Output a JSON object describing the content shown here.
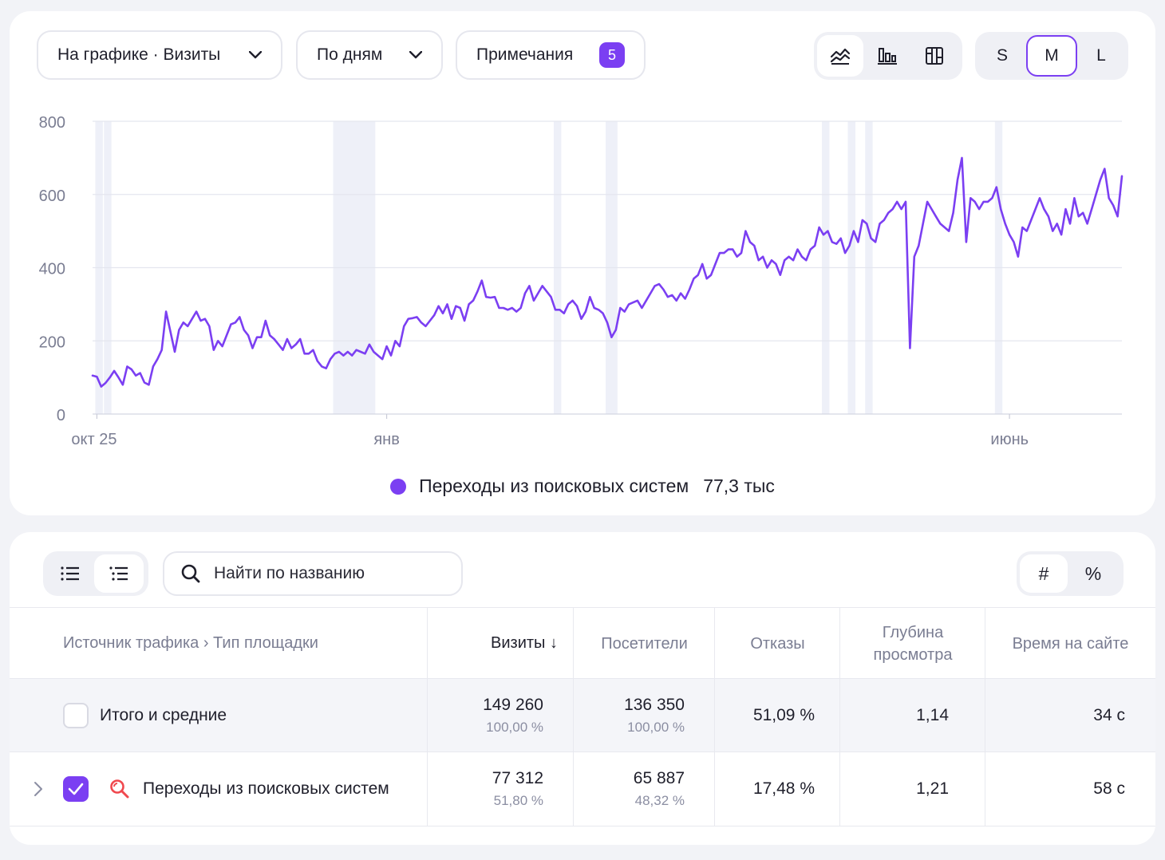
{
  "toolbar": {
    "metric_select": "На графике · Визиты",
    "period_select": "По дням",
    "notes_label": "Примечания",
    "notes_count": "5",
    "chart_type_icons": [
      "line-chart-icon",
      "bar-chart-icon",
      "grid-chart-icon"
    ],
    "size_options": [
      "S",
      "M",
      "L"
    ],
    "size_selected": "M"
  },
  "chart_data": {
    "type": "line",
    "title": "",
    "xlabel": "",
    "ylabel": "",
    "ylim": [
      0,
      800
    ],
    "y_ticks": [
      0,
      200,
      400,
      600,
      800
    ],
    "x_tick_labels": [
      {
        "label": "окт 25",
        "index": 1
      },
      {
        "label": "янв",
        "index": 68
      },
      {
        "label": "июнь",
        "index": 212
      }
    ],
    "weekend_bands": [
      [
        1,
        2
      ],
      [
        3,
        4
      ],
      [
        56,
        65
      ],
      [
        107,
        108
      ],
      [
        119,
        121
      ],
      [
        169,
        170
      ],
      [
        175,
        176
      ],
      [
        179,
        180
      ],
      [
        209,
        210
      ]
    ],
    "series": [
      {
        "name": "Переходы из поисковых систем",
        "color": "#7b3ff2",
        "values": [
          105,
          102,
          75,
          85,
          100,
          118,
          100,
          80,
          130,
          122,
          105,
          112,
          86,
          80,
          130,
          150,
          175,
          280,
          225,
          170,
          230,
          250,
          240,
          260,
          280,
          255,
          260,
          240,
          175,
          200,
          185,
          215,
          245,
          250,
          265,
          230,
          215,
          180,
          210,
          210,
          255,
          215,
          205,
          190,
          175,
          205,
          180,
          190,
          205,
          165,
          165,
          175,
          145,
          130,
          125,
          150,
          165,
          170,
          160,
          170,
          160,
          175,
          170,
          165,
          190,
          170,
          160,
          150,
          185,
          160,
          200,
          185,
          240,
          260,
          262,
          265,
          250,
          240,
          255,
          270,
          295,
          275,
          300,
          260,
          295,
          290,
          255,
          300,
          310,
          335,
          365,
          320,
          318,
          320,
          290,
          290,
          285,
          290,
          280,
          290,
          330,
          350,
          310,
          330,
          350,
          335,
          320,
          285,
          285,
          275,
          300,
          310,
          295,
          260,
          280,
          320,
          290,
          285,
          275,
          250,
          210,
          230,
          290,
          280,
          300,
          305,
          310,
          290,
          310,
          330,
          350,
          355,
          340,
          320,
          325,
          310,
          330,
          315,
          340,
          370,
          380,
          410,
          370,
          380,
          410,
          440,
          440,
          450,
          450,
          430,
          440,
          500,
          470,
          460,
          420,
          430,
          400,
          420,
          410,
          380,
          420,
          430,
          420,
          450,
          430,
          420,
          450,
          460,
          510,
          490,
          500,
          470,
          465,
          480,
          440,
          460,
          500,
          470,
          530,
          520,
          480,
          470,
          520,
          530,
          550,
          560,
          580,
          560,
          580,
          180,
          430,
          460,
          520,
          580,
          560,
          540,
          520,
          510,
          500,
          550,
          640,
          700,
          470,
          590,
          580,
          560,
          580,
          580,
          590,
          620,
          560,
          520,
          490,
          470,
          430,
          510,
          500,
          530,
          560,
          590,
          560,
          540,
          500,
          520,
          490,
          560,
          520,
          590,
          540,
          550,
          520,
          560,
          600,
          640,
          670,
          590,
          570,
          540,
          650
        ]
      }
    ]
  },
  "legend": {
    "label": "Переходы из поисковых систем",
    "value": "77,3 тыс"
  },
  "table": {
    "view_icons": [
      "list-icon",
      "indented-list-icon"
    ],
    "search_placeholder": "Найти по названию",
    "mode_options": [
      "#",
      "%"
    ],
    "columns": {
      "dimension": "Источник трафика › Тип площадки",
      "visits": "Визиты ↓",
      "visitors": "Посетители",
      "bounces": "Отказы",
      "depth": "Глубина просмотра",
      "time": "Время на сайте"
    },
    "total_row": {
      "label": "Итого и средние",
      "visits": "149 260",
      "visits_pct": "100,00 %",
      "visitors": "136 350",
      "visitors_pct": "100,00 %",
      "bounces": "51,09 %",
      "depth": "1,14",
      "time": "34 с"
    },
    "rows": [
      {
        "label": "Переходы из поисковых систем",
        "visits": "77 312",
        "visits_pct": "51,80 %",
        "visitors": "65 887",
        "visitors_pct": "48,32 %",
        "bounces": "17,48 %",
        "depth": "1,21",
        "time": "58 с"
      }
    ]
  }
}
